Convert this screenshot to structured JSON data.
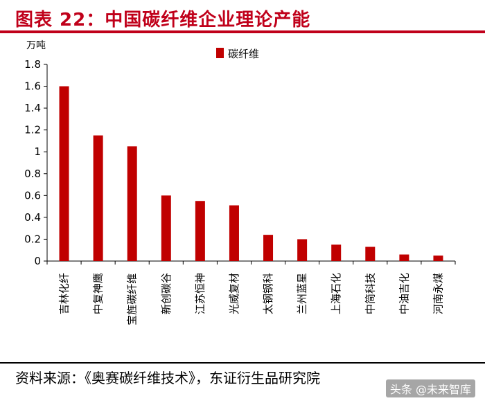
{
  "title": "图表 22：中国碳纤维企业理论产能",
  "source": "资料来源：《奥赛碳纤维技术》，东证衍生品研究院",
  "watermark": "头条 @未来智库",
  "colors": {
    "accent": "#c0001a",
    "bar": "#c00000"
  },
  "chart_data": {
    "type": "bar",
    "ylabel": "万吨",
    "ylim": [
      0,
      1.8
    ],
    "yticks": [
      0,
      0.2,
      0.4,
      0.6,
      0.8,
      1,
      1.2,
      1.4,
      1.6,
      1.8
    ],
    "ytick_labels": [
      "0",
      "0.2",
      "0.4",
      "0.6",
      "0.8",
      "1",
      "1.2",
      "1.4",
      "1.6",
      "1.8"
    ],
    "legend": {
      "position": "top-center",
      "entries": [
        "碳纤维"
      ]
    },
    "grid": false,
    "categories": [
      "吉林化纤",
      "中复神鹰",
      "宝旌碳纤维",
      "新创碳谷",
      "江苏恒神",
      "光威复材",
      "太钢钢科",
      "兰州蓝星",
      "上海石化",
      "中简科技",
      "中油吉化",
      "河南永煤"
    ],
    "series": [
      {
        "name": "碳纤维",
        "values": [
          1.6,
          1.15,
          1.05,
          0.6,
          0.55,
          0.51,
          0.24,
          0.2,
          0.15,
          0.13,
          0.06,
          0.05
        ]
      }
    ]
  }
}
